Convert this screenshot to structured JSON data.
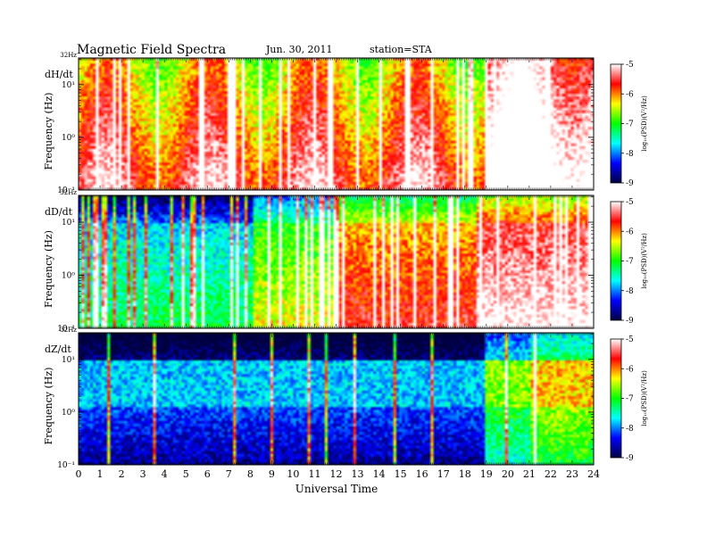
{
  "header": {
    "title": "Magnetic  Field  Spectra",
    "date": "Jun. 30, 2011",
    "station": "station=STA"
  },
  "chart_data": {
    "type": "heatmap",
    "xlabel": "Universal Time",
    "x_ticks": [
      "0",
      "1",
      "2",
      "3",
      "4",
      "5",
      "6",
      "7",
      "8",
      "9",
      "10",
      "11",
      "12",
      "13",
      "14",
      "15",
      "16",
      "17",
      "18",
      "19",
      "20",
      "21",
      "22",
      "23",
      "24"
    ],
    "xlim": [
      0,
      24
    ],
    "ylabel": "Frequency  (Hz)",
    "y_scale": "log",
    "ylim": [
      0.1,
      32
    ],
    "colorbar": {
      "label": "log₁₀(PSD)(V²/Hz)",
      "range": [
        -9,
        -5
      ],
      "ticks": [
        "-5",
        "-6",
        "-7",
        "-8",
        "-9"
      ],
      "colors": [
        "#000040",
        "#0000ff",
        "#00ffff",
        "#00ff00",
        "#ffff00",
        "#ff0000",
        "#ffffff"
      ]
    },
    "panels": [
      {
        "label": "dH/dt",
        "top_label": "32Hz",
        "y_ticks": [
          "10¹",
          "10⁰",
          "10⁻¹"
        ]
      },
      {
        "label": "dD/dt",
        "top_label": "32Hz",
        "y_ticks": [
          "10¹",
          "10⁰",
          "10⁻¹"
        ]
      },
      {
        "label": "dZ/dt",
        "top_label": "32Hz",
        "y_ticks": [
          "10¹",
          "10⁰",
          "10⁻¹"
        ]
      }
    ]
  }
}
